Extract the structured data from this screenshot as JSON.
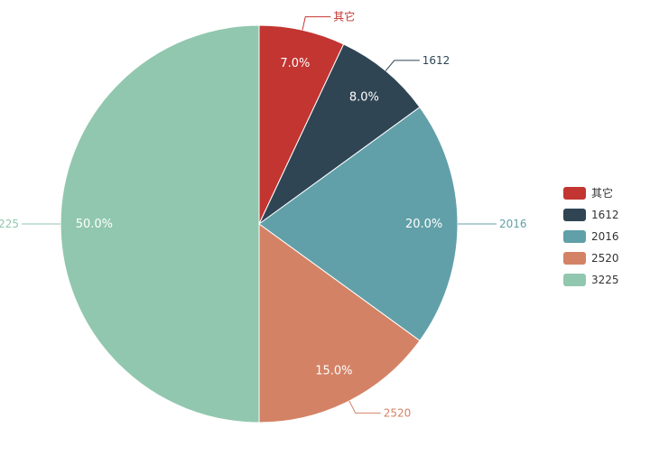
{
  "chart_data": {
    "type": "pie",
    "start_angle_deg": 90,
    "direction": "clockwise",
    "legend_position": "right",
    "slices": [
      {
        "name": "其它",
        "value": 7.0,
        "label": "7.0%",
        "color": "#c23531"
      },
      {
        "name": "1612",
        "value": 8.0,
        "label": "8.0%",
        "color": "#2f4554"
      },
      {
        "name": "2016",
        "value": 20.0,
        "label": "20.0%",
        "color": "#61a0a8"
      },
      {
        "name": "2520",
        "value": 15.0,
        "label": "15.0%",
        "color": "#d48265"
      },
      {
        "name": "3225",
        "value": 50.0,
        "label": "50.0%",
        "color": "#91c7ae"
      }
    ]
  }
}
